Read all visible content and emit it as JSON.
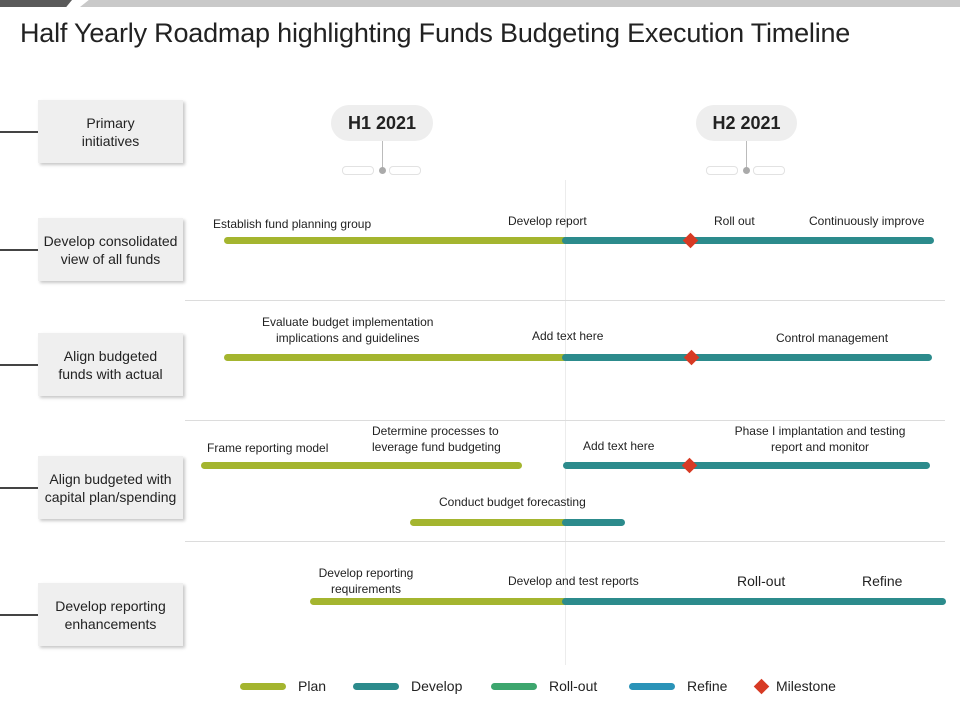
{
  "title": "Half Yearly Roadmap highlighting Funds Budgeting Execution Timeline",
  "colors": {
    "plan": "#a4b52f",
    "develop": "#2c8b8c",
    "rollout": "#3da66e",
    "refine": "#2a93b8",
    "milestone": "#d73a24"
  },
  "header": {
    "label": "Primary initiatives",
    "h1": "H1 2021",
    "h2": "H2 2021"
  },
  "rows": [
    {
      "label": "Develop consolidated view of all funds"
    },
    {
      "label": "Align budgeted funds with actual"
    },
    {
      "label": "Align budgeted with capital plan/spending"
    },
    {
      "label": "Develop reporting enhancements"
    }
  ],
  "tasks": {
    "r1": {
      "a": "Establish fund planning group",
      "b": "Develop report",
      "c": "Roll out",
      "d": "Continuously improve"
    },
    "r2": {
      "a": "Evaluate budget implementation implications and guidelines",
      "b": "Add text here",
      "c": "Control management"
    },
    "r3": {
      "a": "Frame reporting model",
      "b": "Determine processes to leverage  fund budgeting",
      "c": "Add text here",
      "d": "Phase I implantation and testing report and monitor",
      "e": "Conduct budget forecasting"
    },
    "r4": {
      "a": "Develop reporting requirements",
      "b": "Develop and test reports",
      "c": "Roll-out",
      "d": "Refine"
    }
  },
  "legend": {
    "plan": "Plan",
    "develop": "Develop",
    "rollout": "Roll-out",
    "refine": "Refine",
    "milestone": "Milestone"
  }
}
